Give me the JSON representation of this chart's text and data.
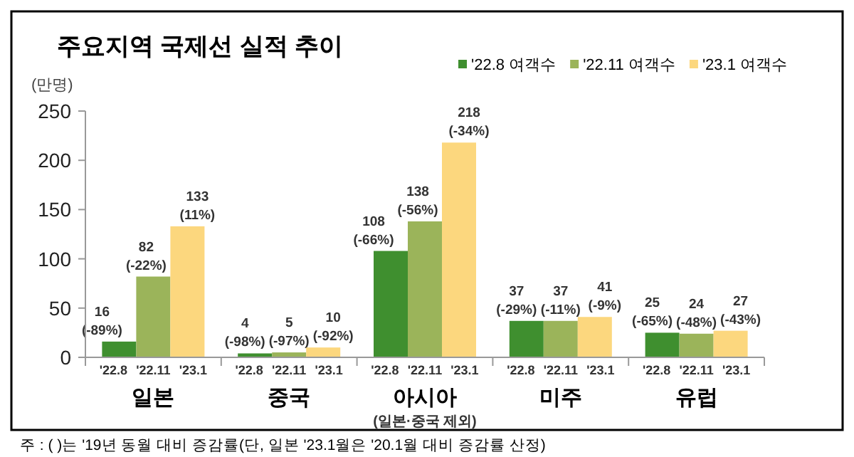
{
  "chart_data": {
    "type": "bar",
    "title": "주요지역 국제선 실적 추이",
    "ylabel": "(만명)",
    "categories": [
      "일본",
      "중국",
      "아시아\n(일본·중국 제외)",
      "미주",
      "유럽"
    ],
    "series": [
      {
        "name": "'22.8 여객수",
        "color": "#3f8f2f",
        "values": [
          16,
          4,
          108,
          37,
          25
        ],
        "value_labels": [
          "16\n(-89%)",
          "4\n(-98%)",
          "108\n(-66%)",
          "37\n(-29%)",
          "25\n(-65%)"
        ]
      },
      {
        "name": "'22.11 여객수",
        "color": "#9bb45a",
        "values": [
          82,
          5,
          138,
          37,
          24
        ],
        "value_labels": [
          "82\n(-22%)",
          "5\n(-97%)",
          "138\n(-56%)",
          "37\n(-11%)",
          "24\n(-48%)"
        ]
      },
      {
        "name": "'23.1 여객수",
        "color": "#fcd77e",
        "values": [
          133,
          10,
          218,
          41,
          27
        ],
        "value_labels": [
          "133\n(11%)",
          "10\n(-92%)",
          "218\n(-34%)",
          "41\n(-9%)",
          "27\n(-43%)"
        ]
      }
    ],
    "ylim": [
      0,
      250
    ],
    "yticks": [
      0,
      50,
      100,
      150,
      200,
      250
    ],
    "grid": false,
    "legend": "top right",
    "annotations": [
      "'22.8",
      "'22.11",
      "'23.1",
      "'22.8",
      "'22.11",
      "'23.1",
      "'22.8",
      "'22.11",
      "'23.1",
      "'22.8",
      "'22.11",
      "'23.1",
      "'22.8",
      "'22.11",
      "'23.1",
      "주 : ( )는 '19년 동월 대비 증감률(단, 일본 '23.1월은 '20.1월 대비 증감률 산정)"
    ]
  }
}
